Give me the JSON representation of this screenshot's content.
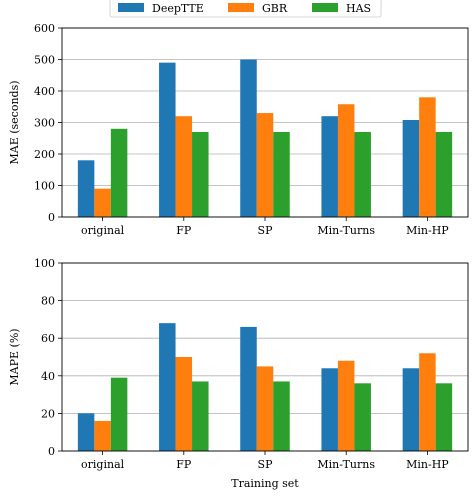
{
  "chart_data": [
    {
      "type": "bar",
      "categories": [
        "original",
        "FP",
        "SP",
        "Min-Turns",
        "Min-HP"
      ],
      "series": [
        {
          "name": "DeepTTE",
          "color": "#1f77b4",
          "values": [
            180,
            490,
            500,
            320,
            308
          ]
        },
        {
          "name": "GBR",
          "color": "#ff7f0e",
          "values": [
            90,
            320,
            330,
            358,
            380
          ]
        },
        {
          "name": "HAS",
          "color": "#2ca02c",
          "values": [
            280,
            270,
            270,
            270,
            270
          ]
        }
      ],
      "ylabel": "MAE (seconds)",
      "xlabel": "",
      "ylim": [
        0,
        600
      ],
      "yticks": [
        0,
        100,
        200,
        300,
        400,
        500,
        600
      ],
      "grid": "horizontal",
      "legend": "top-center"
    },
    {
      "type": "bar",
      "categories": [
        "original",
        "FP",
        "SP",
        "Min-Turns",
        "Min-HP"
      ],
      "series": [
        {
          "name": "DeepTTE",
          "color": "#1f77b4",
          "values": [
            20,
            68,
            66,
            44,
            44
          ]
        },
        {
          "name": "GBR",
          "color": "#ff7f0e",
          "values": [
            16,
            50,
            45,
            48,
            52
          ]
        },
        {
          "name": "HAS",
          "color": "#2ca02c",
          "values": [
            39,
            37,
            37,
            36,
            36
          ]
        }
      ],
      "ylabel": "MAPE (%)",
      "xlabel": "Training set",
      "ylim": [
        0,
        100
      ],
      "yticks": [
        0,
        20,
        40,
        60,
        80,
        100
      ],
      "grid": "horizontal"
    }
  ]
}
